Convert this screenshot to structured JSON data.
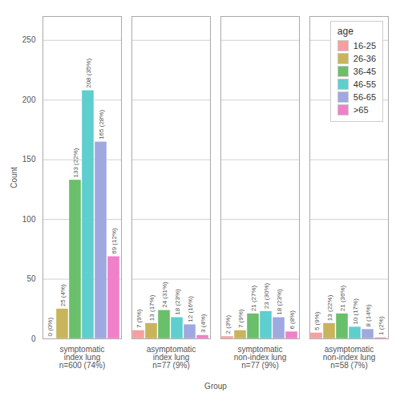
{
  "chart_data": {
    "type": "bar",
    "categories": [
      "symptomatic\nindex lung\nn=600 (74%)",
      "asymptomatic\nindex lung\nn=77 (9%)",
      "symptomatic\nnon-index lung\nn=77 (9%)",
      "asymptomatic\nnon-index lung\nn=58 (7%)"
    ],
    "xlabel": "Group",
    "ylabel": "Count",
    "ylim": [
      0,
      270
    ],
    "yticks": [
      0,
      50,
      100,
      150,
      200,
      250
    ],
    "grid": true,
    "legend": "upper right",
    "legend_title": "age",
    "data_labels": true,
    "series": [
      {
        "name": "16-25",
        "color": "#f4a0a0",
        "values": [
          0,
          7,
          2,
          5
        ],
        "value_labels": [
          "0 (0%)",
          "7 (9%)",
          "2 (3%)",
          "5 (9%)"
        ]
      },
      {
        "name": "26-36",
        "color": "#c8b45a",
        "values": [
          25,
          13,
          7,
          13
        ],
        "value_labels": [
          "25 (4%)",
          "13 (17%)",
          "7 (9%)",
          "13 (22%)"
        ]
      },
      {
        "name": "36-45",
        "color": "#6abf6a",
        "values": [
          133,
          24,
          21,
          21
        ],
        "value_labels": [
          "133 (22%)",
          "24 (31%)",
          "21 (27%)",
          "21 (36%)"
        ]
      },
      {
        "name": "46-55",
        "color": "#5ecece",
        "values": [
          208,
          18,
          23,
          10
        ],
        "value_labels": [
          "208 (35%)",
          "18 (23%)",
          "23 (30%)",
          "10 (17%)"
        ]
      },
      {
        "name": "56-65",
        "color": "#a0a8e0",
        "values": [
          165,
          12,
          18,
          8
        ],
        "value_labels": [
          "165 (28%)",
          "12 (16%)",
          "18 (23%)",
          "8 (14%)"
        ]
      },
      {
        "name": ">65",
        "color": "#f080c8",
        "values": [
          69,
          3,
          6,
          1
        ],
        "value_labels": [
          "69 (12%)",
          "3 (4%)",
          "6 (8%)",
          "1 (2%)"
        ]
      }
    ]
  }
}
